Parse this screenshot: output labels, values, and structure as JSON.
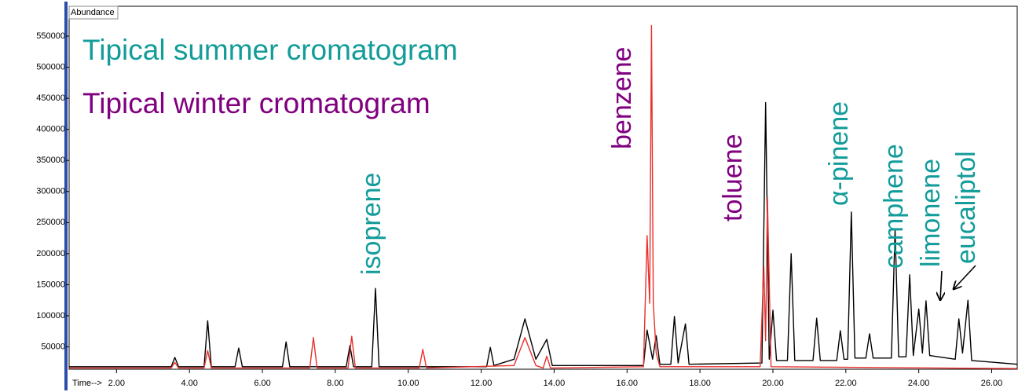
{
  "chart_data": {
    "type": "line",
    "ylabel": "Abundance",
    "xlabel": "Time-->",
    "xlim": [
      0.7,
      26.7
    ],
    "ylim": [
      14000,
      598000
    ],
    "xticks": [
      {
        "value": 2,
        "label": "2.00"
      },
      {
        "value": 4,
        "label": "4.00"
      },
      {
        "value": 6,
        "label": "6.00"
      },
      {
        "value": 8,
        "label": "8.00"
      },
      {
        "value": 10,
        "label": "10.00"
      },
      {
        "value": 12,
        "label": "12.00"
      },
      {
        "value": 14,
        "label": "14.00"
      },
      {
        "value": 16,
        "label": "16.00"
      },
      {
        "value": 18,
        "label": "18.00"
      },
      {
        "value": 20,
        "label": "20.00"
      },
      {
        "value": 22,
        "label": "22.00"
      },
      {
        "value": 24,
        "label": "24.00"
      },
      {
        "value": 26,
        "label": "26.00"
      }
    ],
    "yticks": [
      50000,
      100000,
      150000,
      200000,
      250000,
      300000,
      350000,
      400000,
      450000,
      500000,
      550000
    ],
    "series": [
      {
        "name": "Tipical summer cromatogram",
        "color": "#000000",
        "label_color": "#139c9a",
        "x": [
          0.7,
          3.5,
          3.6,
          3.7,
          4.4,
          4.5,
          4.6,
          5.25,
          5.35,
          5.45,
          6.55,
          6.65,
          6.75,
          8.3,
          8.4,
          8.5,
          9.0,
          9.1,
          9.2,
          12.15,
          12.25,
          12.35,
          12.9,
          13.2,
          13.5,
          13.8,
          13.95,
          16.45,
          16.55,
          16.7,
          16.8,
          16.9,
          17.2,
          17.3,
          17.4,
          17.6,
          17.7,
          19.7,
          19.8,
          19.9,
          20.0,
          20.1,
          20.4,
          20.5,
          20.6,
          21.1,
          21.2,
          21.3,
          21.75,
          21.85,
          21.95,
          22.05,
          22.15,
          22.25,
          22.55,
          22.65,
          22.75,
          23.25,
          23.35,
          23.45,
          23.65,
          23.75,
          23.85,
          24.0,
          24.1,
          24.2,
          24.3,
          25.0,
          25.1,
          25.2,
          25.35,
          25.45,
          26.7
        ],
        "values": [
          18000,
          18000,
          33000,
          18000,
          18000,
          92000,
          18000,
          18000,
          48000,
          18000,
          18000,
          58000,
          18000,
          18000,
          52000,
          18000,
          18000,
          144000,
          18000,
          18000,
          49000,
          20000,
          30000,
          95000,
          30000,
          62000,
          20000,
          20000,
          77000,
          30000,
          68000,
          22000,
          22000,
          99000,
          24000,
          87000,
          22000,
          24000,
          443000,
          30000,
          109000,
          28000,
          28000,
          200000,
          28000,
          28000,
          96000,
          28000,
          28000,
          76000,
          30000,
          30000,
          267000,
          32000,
          32000,
          71000,
          32000,
          32000,
          239000,
          34000,
          34000,
          166000,
          36000,
          111000,
          40000,
          124000,
          36000,
          30000,
          95000,
          40000,
          125000,
          28000,
          22000
        ]
      },
      {
        "name": "Tipical winter cromatogram",
        "color": "#e8302c",
        "label_color": "#800080",
        "x": [
          0.7,
          3.5,
          3.6,
          3.7,
          4.4,
          4.5,
          4.6,
          7.3,
          7.4,
          7.5,
          8.35,
          8.45,
          8.55,
          10.3,
          10.4,
          10.5,
          12.9,
          13.2,
          13.5,
          13.7,
          13.8,
          13.9,
          16.45,
          16.55,
          16.62,
          16.67,
          16.72,
          16.8,
          16.9,
          19.65,
          19.75,
          19.8,
          19.85,
          19.95,
          26.7
        ],
        "values": [
          16000,
          16000,
          25000,
          16000,
          16000,
          44000,
          16000,
          16000,
          65000,
          16000,
          16000,
          67000,
          16000,
          16000,
          46000,
          16000,
          20000,
          65000,
          20000,
          16000,
          35000,
          16000,
          18000,
          229000,
          120000,
          567000,
          120000,
          40000,
          18000,
          18000,
          179000,
          60000,
          290000,
          18000,
          15000
        ]
      }
    ],
    "annotations": [
      {
        "text": "isoprene",
        "color": "#139c9a"
      },
      {
        "text": "benzene",
        "color": "#800080"
      },
      {
        "text": "toluene",
        "color": "#800080"
      },
      {
        "text": "α-pinene",
        "color": "#139c9a"
      },
      {
        "text": "camphene",
        "color": "#139c9a"
      },
      {
        "text": "limonene",
        "color": "#139c9a"
      },
      {
        "text": "eucaliptol",
        "color": "#139c9a"
      }
    ]
  }
}
